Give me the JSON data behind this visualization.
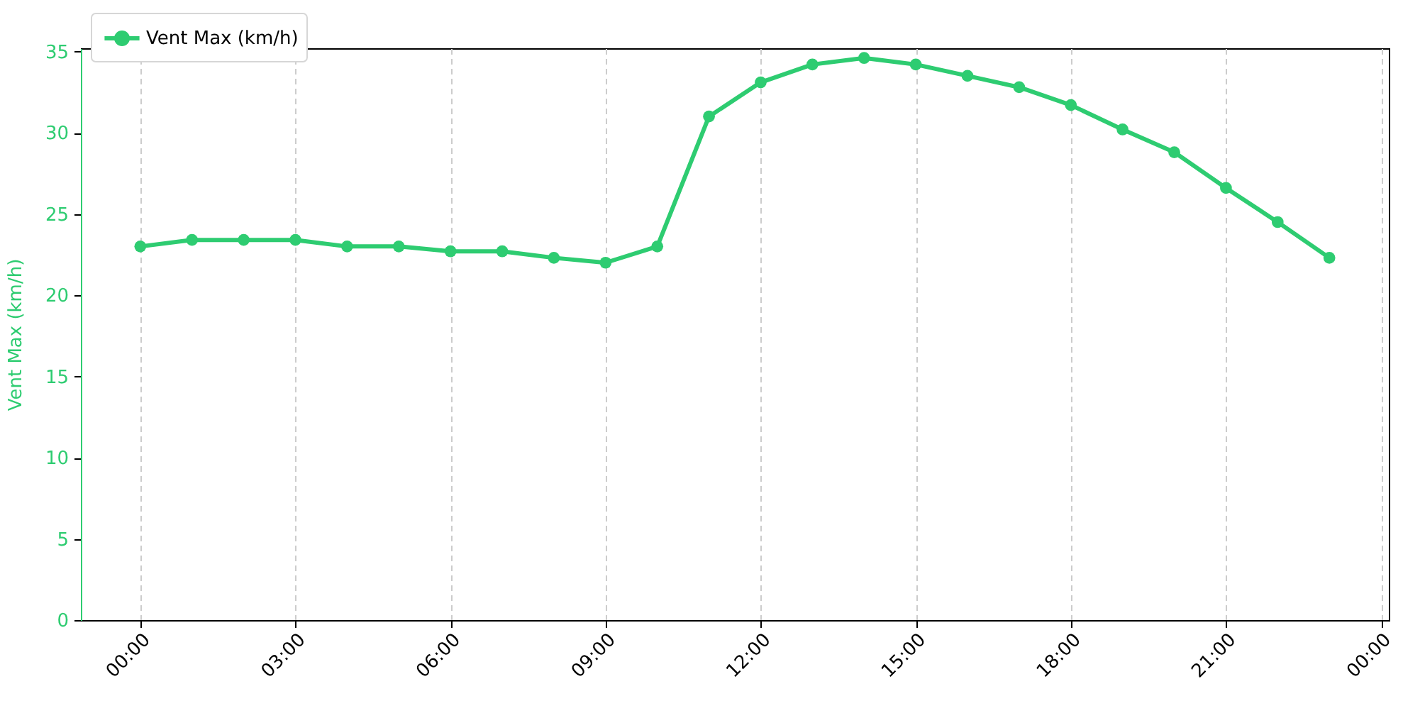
{
  "chart_data": {
    "type": "line",
    "x": [
      0,
      1,
      2,
      3,
      4,
      5,
      6,
      7,
      8,
      9,
      10,
      11,
      12,
      13,
      14,
      15,
      16,
      17,
      18,
      19,
      20,
      21,
      22,
      23
    ],
    "series": [
      {
        "name": "Vent Max (km/h)",
        "color": "#2ecc71",
        "values": [
          23.0,
          23.4,
          23.4,
          23.4,
          23.0,
          23.0,
          22.7,
          22.7,
          22.3,
          22.0,
          23.0,
          31.0,
          33.1,
          34.2,
          34.6,
          34.2,
          33.5,
          32.8,
          31.7,
          30.2,
          28.8,
          26.6,
          24.5,
          22.3
        ]
      }
    ],
    "ylabel": "Vent Max (km/h)",
    "xlim": [
      -1.15,
      24.15
    ],
    "xticks": [
      {
        "value": 0,
        "label": "00:00"
      },
      {
        "value": 3,
        "label": "03:00"
      },
      {
        "value": 6,
        "label": "06:00"
      },
      {
        "value": 9,
        "label": "09:00"
      },
      {
        "value": 12,
        "label": "12:00"
      },
      {
        "value": 15,
        "label": "15:00"
      },
      {
        "value": 18,
        "label": "18:00"
      },
      {
        "value": 21,
        "label": "21:00"
      },
      {
        "value": 24,
        "label": "00:00"
      }
    ],
    "ylim": [
      0,
      35.2
    ],
    "yticks": [
      0,
      5,
      10,
      15,
      20,
      25,
      30,
      35
    ],
    "grid": "x",
    "legend": "top left",
    "marker": "circle",
    "line_style": "solid"
  }
}
